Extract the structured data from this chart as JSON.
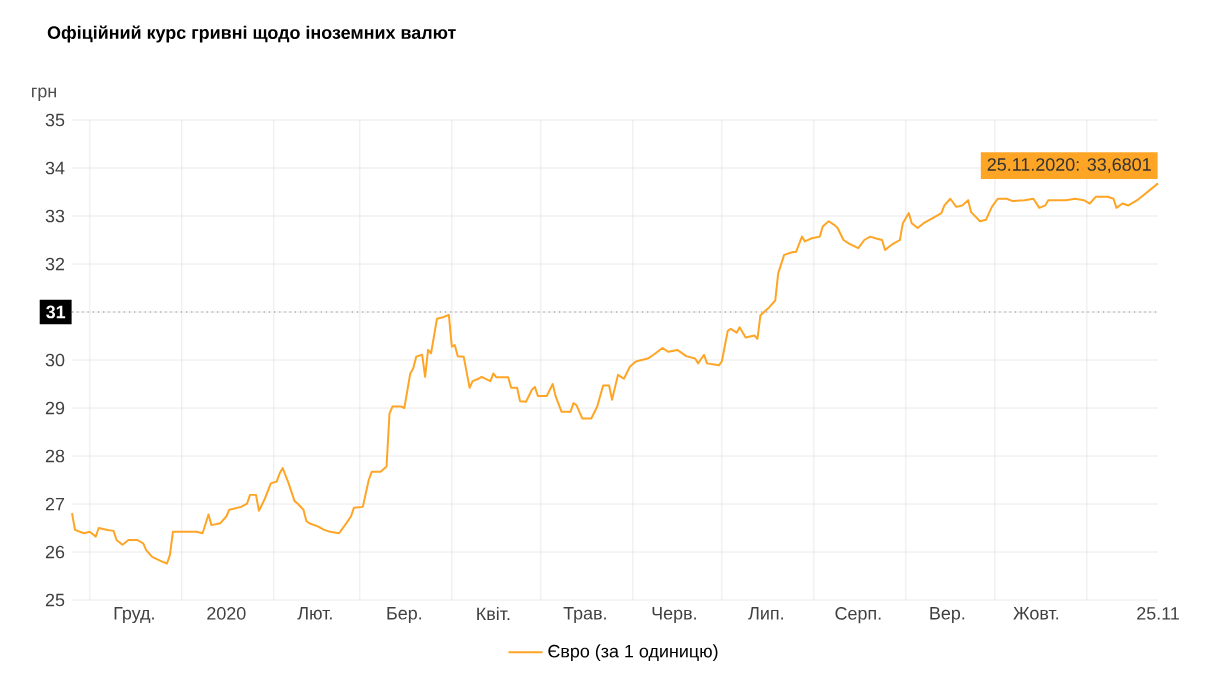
{
  "chart_data": {
    "type": "line",
    "title": "Офіційний курс гривні щодо іноземних валют",
    "ylabel": "грн",
    "x": [
      "2019-11-25",
      "2019-11-26",
      "2019-11-29",
      "2019-12-01",
      "2019-12-03",
      "2019-12-04",
      "2019-12-07",
      "2019-12-09",
      "2019-12-10",
      "2019-12-12",
      "2019-12-14",
      "2019-12-17",
      "2019-12-19",
      "2019-12-20",
      "2019-12-22",
      "2019-12-25",
      "2019-12-27",
      "2019-12-28",
      "2019-12-29",
      "2019-12-31",
      "2020-01-06",
      "2020-01-08",
      "2020-01-10",
      "2020-01-11",
      "2020-01-14",
      "2020-01-16",
      "2020-01-17",
      "2020-01-21",
      "2020-01-23",
      "2020-01-24",
      "2020-01-26",
      "2020-01-27",
      "2020-01-29",
      "2020-01-31",
      "2020-02-02",
      "2020-02-03",
      "2020-02-04",
      "2020-02-06",
      "2020-02-08",
      "2020-02-09",
      "2020-02-11",
      "2020-02-12",
      "2020-02-13",
      "2020-02-16",
      "2020-02-18",
      "2020-02-20",
      "2020-02-23",
      "2020-02-25",
      "2020-02-27",
      "2020-02-28",
      "2020-03-02",
      "2020-03-04",
      "2020-03-05",
      "2020-03-08",
      "2020-03-10",
      "2020-03-11",
      "2020-03-12",
      "2020-03-15",
      "2020-03-16",
      "2020-03-18",
      "2020-03-19",
      "2020-03-20",
      "2020-03-22",
      "2020-03-23",
      "2020-03-24",
      "2020-03-25",
      "2020-03-27",
      "2020-03-29",
      "2020-03-31",
      "2020-04-01",
      "2020-04-02",
      "2020-04-03",
      "2020-04-05",
      "2020-04-07",
      "2020-04-08",
      "2020-04-10",
      "2020-04-11",
      "2020-04-14",
      "2020-04-15",
      "2020-04-16",
      "2020-04-20",
      "2020-04-21",
      "2020-04-23",
      "2020-04-24",
      "2020-04-26",
      "2020-04-28",
      "2020-04-29",
      "2020-04-30",
      "2020-05-03",
      "2020-05-05",
      "2020-05-06",
      "2020-05-08",
      "2020-05-11",
      "2020-05-12",
      "2020-05-13",
      "2020-05-15",
      "2020-05-18",
      "2020-05-20",
      "2020-05-22",
      "2020-05-24",
      "2020-05-25",
      "2020-05-27",
      "2020-05-29",
      "2020-05-31",
      "2020-06-02",
      "2020-06-06",
      "2020-06-08",
      "2020-06-11",
      "2020-06-13",
      "2020-06-16",
      "2020-06-19",
      "2020-06-22",
      "2020-06-23",
      "2020-06-25",
      "2020-06-26",
      "2020-06-30",
      "2020-07-01",
      "2020-07-03",
      "2020-07-04",
      "2020-07-06",
      "2020-07-07",
      "2020-07-09",
      "2020-07-12",
      "2020-07-13",
      "2020-07-14",
      "2020-07-17",
      "2020-07-19",
      "2020-07-20",
      "2020-07-22",
      "2020-07-25",
      "2020-07-26",
      "2020-07-28",
      "2020-07-29",
      "2020-07-31",
      "2020-08-03",
      "2020-08-04",
      "2020-08-06",
      "2020-08-08",
      "2020-08-09",
      "2020-08-11",
      "2020-08-13",
      "2020-08-16",
      "2020-08-18",
      "2020-08-20",
      "2020-08-22",
      "2020-08-24",
      "2020-08-25",
      "2020-08-27",
      "2020-08-28",
      "2020-08-30",
      "2020-08-31",
      "2020-09-02",
      "2020-09-03",
      "2020-09-05",
      "2020-09-07",
      "2020-09-09",
      "2020-09-11",
      "2020-09-13",
      "2020-09-14",
      "2020-09-16",
      "2020-09-18",
      "2020-09-20",
      "2020-09-22",
      "2020-09-23",
      "2020-09-26",
      "2020-09-28",
      "2020-09-30",
      "2020-10-02",
      "2020-10-05",
      "2020-10-07",
      "2020-10-11",
      "2020-10-14",
      "2020-10-16",
      "2020-10-18",
      "2020-10-19",
      "2020-10-25",
      "2020-10-28",
      "2020-10-31",
      "2020-11-02",
      "2020-11-04",
      "2020-11-08",
      "2020-11-10",
      "2020-11-11",
      "2020-11-13",
      "2020-11-15",
      "2020-11-18",
      "2020-11-25"
    ],
    "series": [
      {
        "name": "Євро (за 1 одиницю)",
        "color": "#ffa526",
        "values": [
          26.81,
          26.46,
          26.39,
          26.42,
          26.32,
          26.5,
          26.46,
          26.44,
          26.25,
          26.15,
          26.25,
          26.25,
          26.18,
          26.04,
          25.9,
          25.81,
          25.76,
          25.94,
          26.42,
          26.42,
          26.42,
          26.39,
          26.78,
          26.56,
          26.6,
          26.74,
          26.88,
          26.94,
          27.01,
          27.19,
          27.19,
          26.86,
          27.11,
          27.43,
          27.47,
          27.64,
          27.75,
          27.43,
          27.06,
          27.01,
          26.88,
          26.64,
          26.6,
          26.53,
          26.46,
          26.42,
          26.39,
          26.56,
          26.74,
          26.92,
          26.94,
          27.5,
          27.67,
          27.67,
          27.78,
          28.89,
          29.03,
          29.03,
          29.0,
          29.72,
          29.83,
          30.07,
          30.11,
          29.65,
          30.21,
          30.14,
          30.86,
          30.89,
          30.94,
          30.28,
          30.31,
          30.08,
          30.07,
          29.42,
          29.56,
          29.61,
          29.65,
          29.56,
          29.72,
          29.64,
          29.64,
          29.42,
          29.42,
          29.14,
          29.13,
          29.38,
          29.44,
          29.25,
          29.25,
          29.5,
          29.24,
          28.92,
          28.92,
          29.1,
          29.06,
          28.78,
          28.78,
          29.03,
          29.47,
          29.47,
          29.17,
          29.69,
          29.61,
          29.86,
          29.97,
          30.03,
          30.11,
          30.25,
          30.17,
          30.21,
          30.08,
          30.03,
          29.93,
          30.11,
          29.93,
          29.89,
          29.97,
          30.61,
          30.65,
          30.57,
          30.68,
          30.47,
          30.51,
          30.44,
          30.93,
          31.1,
          31.24,
          31.81,
          32.19,
          32.25,
          32.25,
          32.57,
          32.47,
          32.53,
          32.57,
          32.78,
          32.89,
          32.81,
          32.75,
          32.5,
          32.42,
          32.33,
          32.5,
          32.57,
          32.53,
          32.5,
          32.29,
          32.39,
          32.43,
          32.5,
          32.85,
          33.06,
          32.85,
          32.75,
          32.85,
          32.92,
          32.99,
          33.06,
          33.22,
          33.36,
          33.19,
          33.22,
          33.33,
          33.08,
          32.89,
          32.92,
          33.19,
          33.36,
          33.36,
          33.31,
          33.33,
          33.36,
          33.17,
          33.22,
          33.33,
          33.33,
          33.36,
          33.33,
          33.26,
          33.4,
          33.4,
          33.36,
          33.17,
          33.26,
          33.22,
          33.33,
          33.6801
        ]
      }
    ],
    "xlim": [
      "2019-11-25",
      "2020-11-25"
    ],
    "xticks": [
      {
        "value": "2019-12-01",
        "label": null
      },
      {
        "value": "2019-12-16",
        "label": "Груд."
      },
      {
        "value": "2020-01-01",
        "label": null
      },
      {
        "value": "2020-01-16",
        "label": "2020"
      },
      {
        "value": "2020-02-01",
        "label": null
      },
      {
        "value": "2020-02-15",
        "label": "Лют."
      },
      {
        "value": "2020-03-01",
        "label": null
      },
      {
        "value": "2020-03-16",
        "label": "Бер."
      },
      {
        "value": "2020-04-01",
        "label": null
      },
      {
        "value": "2020-04-15",
        "label": "Квіт."
      },
      {
        "value": "2020-05-01",
        "label": null
      },
      {
        "value": "2020-05-16",
        "label": "Трав."
      },
      {
        "value": "2020-06-01",
        "label": null
      },
      {
        "value": "2020-06-15",
        "label": "Черв."
      },
      {
        "value": "2020-07-01",
        "label": null
      },
      {
        "value": "2020-07-16",
        "label": "Лип."
      },
      {
        "value": "2020-08-01",
        "label": null
      },
      {
        "value": "2020-08-16",
        "label": "Серп."
      },
      {
        "value": "2020-09-01",
        "label": null
      },
      {
        "value": "2020-09-15",
        "label": "Вер."
      },
      {
        "value": "2020-10-01",
        "label": null
      },
      {
        "value": "2020-10-15",
        "label": "Жовт."
      },
      {
        "value": "2020-11-01",
        "label": null
      },
      {
        "value": "2020-11-25",
        "label": "25.11"
      }
    ],
    "ylim": [
      25,
      35
    ],
    "yticks": [
      25,
      26,
      27,
      28,
      29,
      30,
      31,
      32,
      33,
      34,
      35
    ],
    "grid": true,
    "legend": "bottom",
    "marker": "none",
    "line_style": "solid",
    "ref_lines": [
      {
        "axis": "y",
        "value": 31,
        "label": "31",
        "color": "#888888",
        "line_style": "dotted"
      }
    ],
    "annotations": [
      {
        "text": "25.11.2020: 33,6801",
        "x": "2020-11-25",
        "y": 33.6801
      }
    ]
  }
}
